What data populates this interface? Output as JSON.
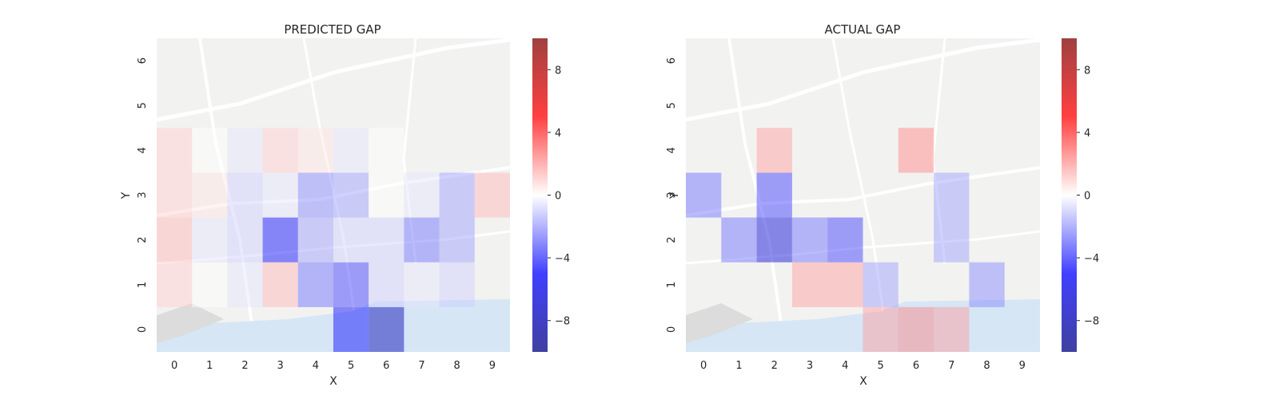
{
  "chart_data": [
    {
      "type": "heatmap",
      "title": "PREDICTED GAP",
      "xlabel": "X",
      "ylabel": "Y",
      "x": [
        0,
        1,
        2,
        3,
        4,
        5,
        6,
        7,
        8,
        9
      ],
      "y": [
        0,
        1,
        2,
        3,
        4,
        5,
        6
      ],
      "zlim": [
        -10,
        10
      ],
      "colorbar_ticks": [
        -8,
        -4,
        0,
        4,
        8
      ],
      "colorbar_tick_labels": [
        "−8",
        "−4",
        "0",
        "4",
        "8"
      ],
      "grid": false,
      "background": "street map",
      "colormap": "seismic",
      "values": [
        [
          null,
          null,
          null,
          null,
          null,
          -5,
          -8,
          null,
          null,
          null
        ],
        [
          1,
          0,
          -0.5,
          1.5,
          -3,
          -4,
          -1,
          -0.5,
          -1,
          null
        ],
        [
          1.5,
          -0.5,
          -1,
          -5,
          -2,
          -1,
          -1,
          -3,
          -2,
          null
        ],
        [
          1,
          0.5,
          -1,
          -0.5,
          -2.5,
          -2,
          0,
          -0.5,
          -2,
          1.5
        ],
        [
          1,
          0,
          -0.5,
          1,
          0.5,
          -0.5,
          0,
          null,
          null,
          null
        ],
        [
          null,
          null,
          null,
          null,
          null,
          null,
          null,
          null,
          null,
          null
        ],
        [
          null,
          null,
          null,
          null,
          null,
          null,
          null,
          null,
          null,
          null
        ]
      ]
    },
    {
      "type": "heatmap",
      "title": "ACTUAL GAP",
      "xlabel": "X",
      "ylabel": "Y",
      "x": [
        0,
        1,
        2,
        3,
        4,
        5,
        6,
        7,
        8,
        9
      ],
      "y": [
        0,
        1,
        2,
        3,
        4,
        5,
        6
      ],
      "zlim": [
        -10,
        10
      ],
      "colorbar_ticks": [
        -8,
        -4,
        0,
        4,
        8
      ],
      "colorbar_tick_labels": [
        "−8",
        "−4",
        "0",
        "4",
        "8"
      ],
      "grid": false,
      "background": "street map",
      "colormap": "seismic",
      "values": [
        [
          null,
          null,
          null,
          null,
          null,
          2,
          2.5,
          2,
          null,
          null
        ],
        [
          null,
          null,
          null,
          2,
          2,
          -2,
          null,
          null,
          -2.5,
          null
        ],
        [
          null,
          -3,
          -6.5,
          -3,
          -4,
          null,
          null,
          -2,
          null,
          null
        ],
        [
          -3,
          null,
          -4,
          null,
          null,
          null,
          null,
          -2,
          null,
          null
        ],
        [
          null,
          null,
          2,
          null,
          null,
          null,
          2.5,
          null,
          null,
          null
        ],
        [
          null,
          null,
          null,
          null,
          null,
          null,
          null,
          null,
          null,
          null
        ],
        [
          null,
          null,
          null,
          null,
          null,
          null,
          null,
          null,
          null,
          null
        ]
      ]
    }
  ]
}
